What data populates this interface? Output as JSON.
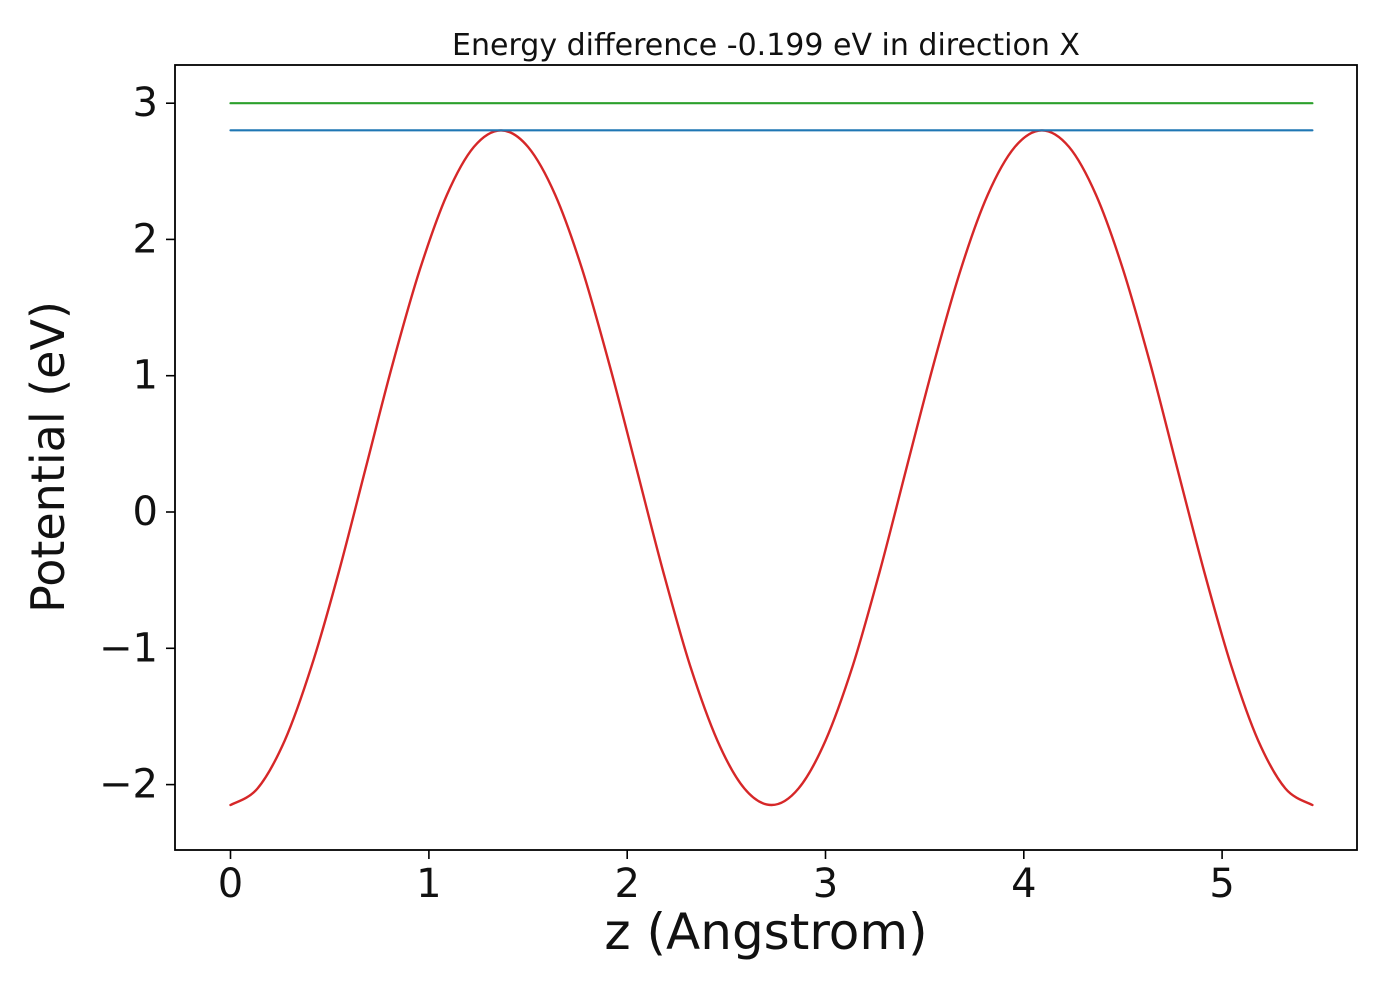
{
  "figure": {
    "background": "#ffffff",
    "axes_color": "#000000",
    "text_color": "#111111"
  },
  "chart_data": {
    "type": "line",
    "title": "Energy difference -0.199 eV in direction X",
    "xlabel": "z (Angstrom)",
    "ylabel": "Potential (eV)",
    "xlim": [
      -0.28,
      5.68
    ],
    "ylim": [
      -2.48,
      3.28
    ],
    "xticks": [
      0,
      1,
      2,
      3,
      4,
      5
    ],
    "yticks": [
      -2,
      -1,
      0,
      1,
      2,
      3
    ],
    "grid": false,
    "legend": null,
    "series": [
      {
        "name": "potential-curve",
        "type": "line",
        "color": "#d62728",
        "width": 2.4,
        "smooth": true,
        "x": [
          0,
          0.136,
          0.273,
          0.409,
          0.546,
          0.682,
          0.818,
          0.955,
          1.091,
          1.227,
          1.364,
          1.5,
          1.637,
          1.773,
          1.909,
          2.046,
          2.182,
          2.318,
          2.455,
          2.591,
          2.728,
          2.864,
          3.0,
          3.137,
          3.273,
          3.409,
          3.546,
          3.682,
          3.818,
          3.955,
          4.091,
          4.228,
          4.364,
          4.5,
          4.637,
          4.773,
          4.91,
          5.046,
          5.182,
          5.319,
          5.455
        ],
        "y": [
          -2.15,
          -2.029,
          -1.677,
          -1.13,
          -0.44,
          0.325,
          1.09,
          1.78,
          2.327,
          2.679,
          2.8,
          2.679,
          2.327,
          1.78,
          1.09,
          0.325,
          -0.44,
          -1.13,
          -1.677,
          -2.029,
          -2.15,
          -2.029,
          -1.677,
          -1.13,
          -0.44,
          0.325,
          1.09,
          1.78,
          2.327,
          2.679,
          2.8,
          2.679,
          2.327,
          1.78,
          1.09,
          0.325,
          -0.44,
          -1.13,
          -1.677,
          -2.029,
          -2.15
        ]
      },
      {
        "name": "energy-level-blue",
        "type": "line",
        "color": "#1f77b4",
        "width": 2.2,
        "smooth": false,
        "x": [
          0,
          5.455
        ],
        "y": [
          2.801,
          2.801
        ]
      },
      {
        "name": "energy-level-green",
        "type": "line",
        "color": "#2ca02c",
        "width": 2.2,
        "smooth": false,
        "x": [
          0,
          5.455
        ],
        "y": [
          3.0,
          3.0
        ]
      }
    ]
  }
}
